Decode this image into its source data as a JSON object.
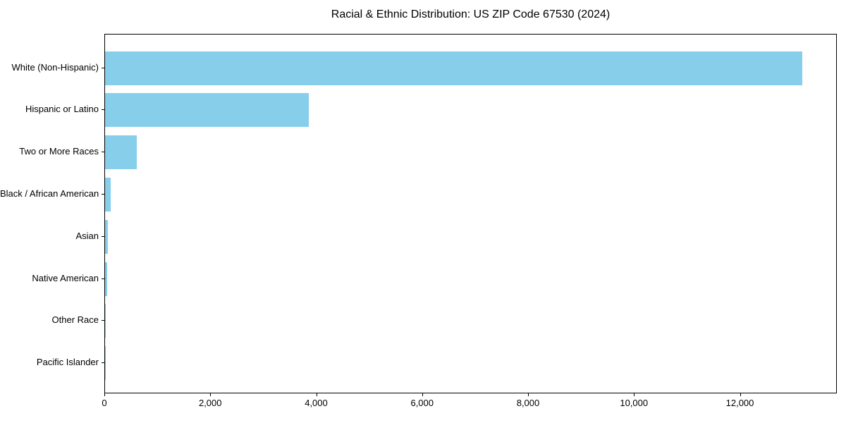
{
  "chart_data": {
    "type": "bar",
    "orientation": "horizontal",
    "title": "Racial & Ethnic Distribution: US ZIP Code 67530 (2024)",
    "categories": [
      "White (Non-Hispanic)",
      "Hispanic or Latino",
      "Two or More Races",
      "Black / African American",
      "Asian",
      "Native American",
      "Other Race",
      "Pacific Islander"
    ],
    "values": [
      13160,
      3850,
      600,
      110,
      55,
      42,
      15,
      5
    ],
    "xlabel": "",
    "ylabel": "",
    "xlim": [
      0,
      13830
    ],
    "x_ticks": [
      0,
      2000,
      4000,
      6000,
      8000,
      10000,
      12000
    ],
    "x_tick_labels": [
      "0",
      "2,000",
      "4,000",
      "6,000",
      "8,000",
      "10,000",
      "12,000"
    ],
    "bar_color": "#87CEEB",
    "axis_color": "#000000",
    "text_color": "#000000",
    "background_color": "#ffffff",
    "grid": false,
    "legend": "none"
  }
}
